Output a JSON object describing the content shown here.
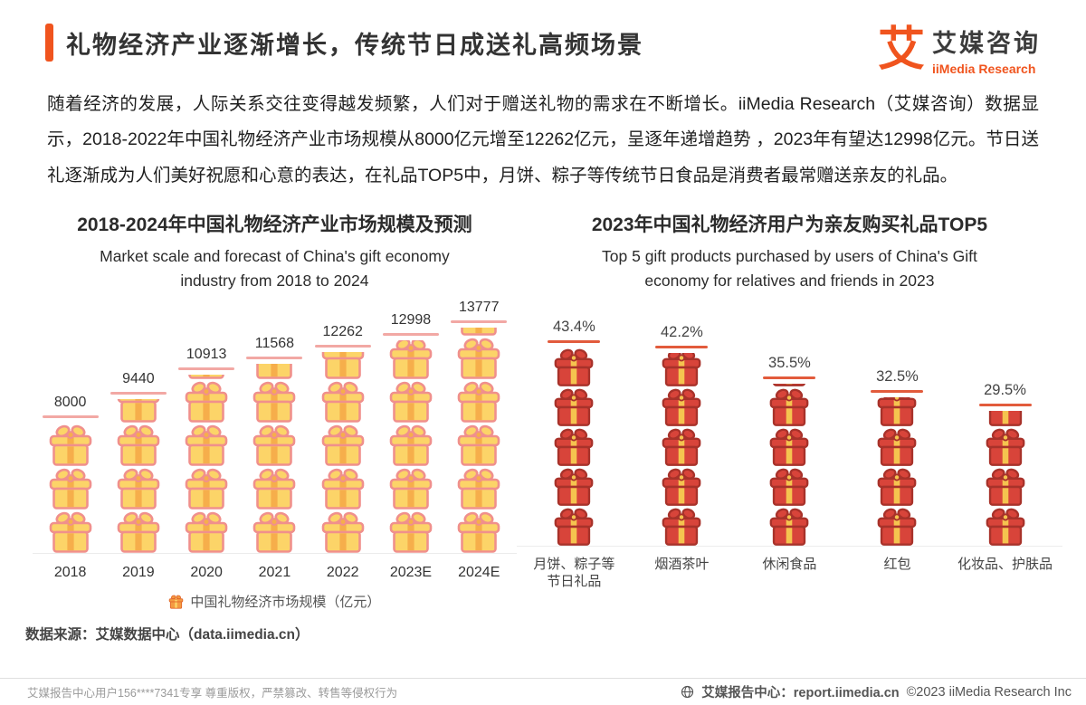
{
  "header": {
    "title": "礼物经济产业逐渐增长，传统节日成送礼高频场景",
    "brand": {
      "logo_char": "艾",
      "name_cn": "艾媒咨询",
      "name_en": "iiMedia Research"
    }
  },
  "intro": "随着经济的发展，人际关系交往变得越发频繁，人们对于赠送礼物的需求在不断增长。iiMedia Research（艾媒咨询）数据显示，2018-2022年中国礼物经济产业市场规模从8000亿元增至12262亿元，呈逐年递增趋势 ，2023年有望达12998亿元。节日送礼逐渐成为人们美好祝愿和心意的表达，在礼品TOP5中，月饼、粽子等传统节日食品是消费者最常赠送亲友的礼品。",
  "chart_data": [
    {
      "type": "bar",
      "title": "2018-2024年中国礼物经济产业市场规模及预测",
      "subtitle": "Market scale and forecast of China's gift economy\nindustry from 2018 to 2024",
      "categories": [
        "2018",
        "2019",
        "2020",
        "2021",
        "2022",
        "2023E",
        "2024E"
      ],
      "values": [
        8000,
        9440,
        10913,
        11568,
        12262,
        12998,
        13777
      ],
      "legend": "中国礼物经济市场规模（亿元）",
      "ylabel": "亿元",
      "ylim": [
        0,
        14000
      ],
      "value_suffix": ""
    },
    {
      "type": "bar",
      "title": "2023年中国礼物经济用户为亲友购买礼品TOP5",
      "subtitle": "Top 5 gift products purchased by users of China's Gift\neconomy for relatives and friends in 2023",
      "categories": [
        "月饼、粽子等\n节日礼品",
        "烟酒茶叶",
        "休闲食品",
        "红包",
        "化妆品、护肤品"
      ],
      "values": [
        43.4,
        42.2,
        35.5,
        32.5,
        29.5
      ],
      "ylabel": "%",
      "ylim": [
        0,
        48
      ],
      "value_suffix": "%"
    }
  ],
  "source": "数据来源：艾媒数据中心（data.iimedia.cn）",
  "footer": {
    "left": "艾媒报告中心用户156****7341专享 尊重版权，严禁篡改、转售等侵权行为",
    "right_site": "艾媒报告中心：report.iimedia.cn",
    "right_copyright": "©2023  iiMedia Research Inc"
  },
  "colors": {
    "accent_orange": "#F0541E",
    "left_gift_body": "#FCD468",
    "left_gift_outline": "#F0908C",
    "left_gift_ribbon": "#F6AE4B",
    "left_cap": "#F2A8A4",
    "right_gift_body": "#D8443A",
    "right_gift_outline": "#A8322A",
    "right_gift_ribbon": "#F5C44F",
    "right_cap": "#E25B3C",
    "legend_gift_body": "#F49B42",
    "legend_gift_outline": "#E2662A",
    "legend_gift_ribbon": "#FCD468"
  }
}
